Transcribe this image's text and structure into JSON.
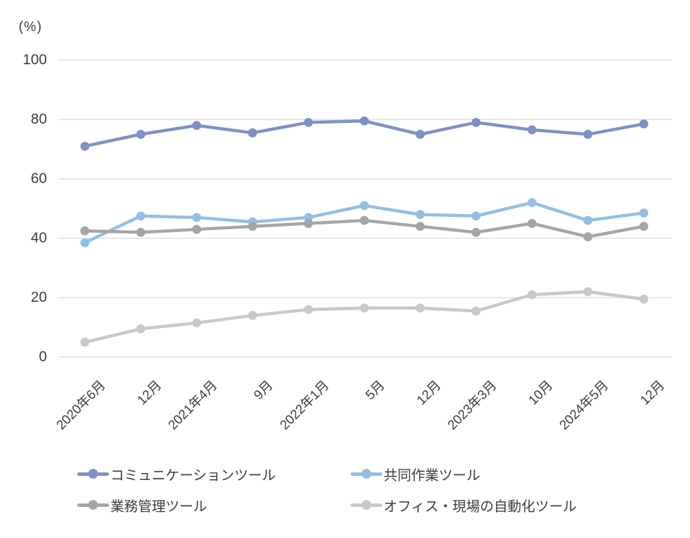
{
  "axis_unit_label": "(%)",
  "colors": {
    "grid": "#D9D9D9",
    "axis_text": "#3D3D3D"
  },
  "chart_data": {
    "type": "line",
    "unit": "%",
    "title": "",
    "xlabel": "",
    "ylabel": "(%)",
    "ylim": [
      0,
      100
    ],
    "yticks": [
      100,
      80,
      60,
      40,
      20,
      0
    ],
    "grid": "horizontal",
    "legend_position": "bottom",
    "categories": [
      "2020年6月",
      "12月",
      "2021年4月",
      "9月",
      "2022年1月",
      "5月",
      "12月",
      "2023年3月",
      "10月",
      "2024年5月",
      "12月"
    ],
    "series": [
      {
        "name": "コミュニケーションツール",
        "color": "#7D91C7",
        "values": [
          71,
          75,
          78,
          75.5,
          79,
          79.5,
          75,
          79,
          76.5,
          75,
          78.5
        ]
      },
      {
        "name": "共同作業ツール",
        "color": "#92BFE6",
        "values": [
          38.5,
          47.5,
          47,
          45.5,
          47,
          51,
          48,
          47.5,
          52,
          46,
          48.5
        ]
      },
      {
        "name": "業務管理ツール",
        "color": "#A5A5A5",
        "values": [
          42.5,
          42,
          43,
          44,
          45,
          46,
          44,
          42,
          45,
          40.5,
          44
        ]
      },
      {
        "name": "オフィス・現場の自動化ツール",
        "color": "#C8C8C8",
        "values": [
          5,
          9.5,
          11.5,
          14,
          16,
          16.5,
          16.5,
          15.5,
          21,
          22,
          19.5
        ]
      }
    ]
  }
}
